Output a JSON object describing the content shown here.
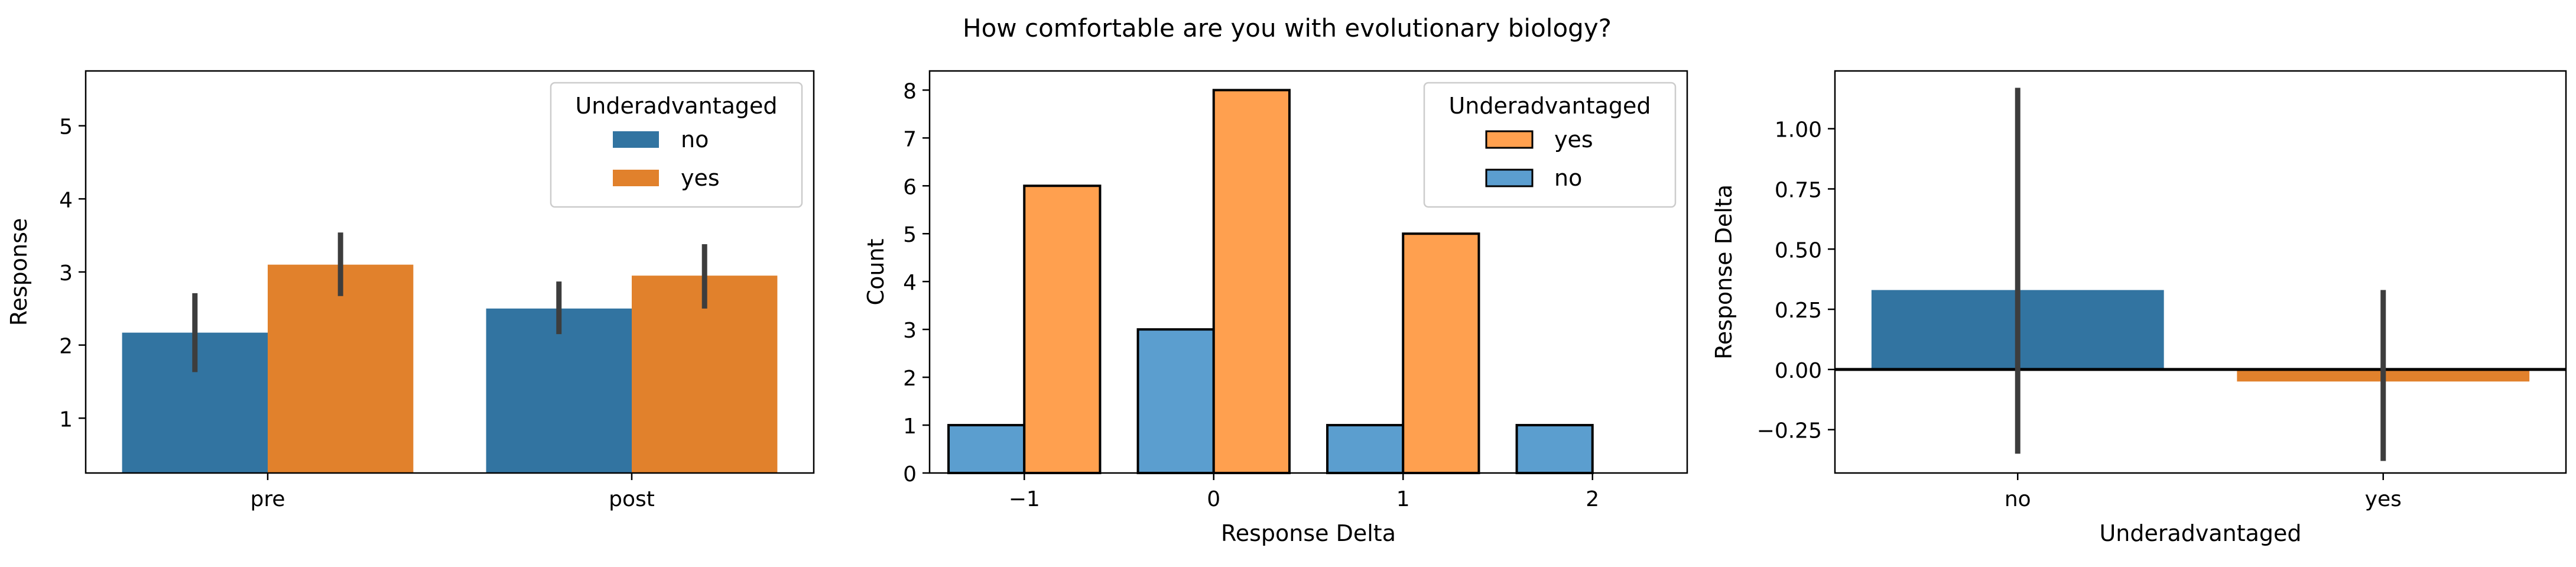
{
  "figure": {
    "title": "How comfortable are you with evolutionary biology?"
  },
  "colors": {
    "blue": "#3274a1",
    "orange": "#e1812c",
    "hist_blue": "#5b9ecf",
    "hist_orange": "#ffa04f",
    "errorbar": "#3d3d3d"
  },
  "chart_data": [
    {
      "type": "bar",
      "title": "",
      "xlabel": "",
      "ylabel": "Response",
      "categories": [
        "pre",
        "post"
      ],
      "ylim": [
        0.25,
        5.75
      ],
      "yticks": [
        1,
        2,
        3,
        4,
        5
      ],
      "legend": {
        "title": "Underadvantaged",
        "placement": "top-right"
      },
      "series": [
        {
          "name": "no",
          "color": "blue",
          "values": [
            2.17,
            2.5
          ],
          "ci": [
            [
              1.63,
              2.71
            ],
            [
              2.15,
              2.87
            ]
          ]
        },
        {
          "name": "yes",
          "color": "orange",
          "values": [
            3.1,
            2.95
          ],
          "ci": [
            [
              2.67,
              3.54
            ],
            [
              2.5,
              3.38
            ]
          ]
        }
      ]
    },
    {
      "type": "bar",
      "subtype": "histogram",
      "title": "",
      "xlabel": "Response Delta",
      "ylabel": "Count",
      "categories": [
        -1,
        0,
        1,
        2
      ],
      "xlim": [
        -1.5,
        2.5
      ],
      "ylim": [
        0,
        8.4
      ],
      "xticks": [
        -1,
        0,
        1,
        2
      ],
      "xtick_labels": [
        "−1",
        "0",
        "1",
        "2"
      ],
      "yticks": [
        0,
        1,
        2,
        3,
        4,
        5,
        6,
        7,
        8
      ],
      "legend": {
        "title": "Underadvantaged",
        "placement": "top-right"
      },
      "series": [
        {
          "name": "no",
          "color": "hist_blue",
          "values": [
            1,
            3,
            1,
            1
          ]
        },
        {
          "name": "yes",
          "color": "hist_orange",
          "values": [
            6,
            8,
            5,
            0
          ]
        }
      ],
      "legend_order": [
        "yes",
        "no"
      ]
    },
    {
      "type": "bar",
      "title": "",
      "xlabel": "Underadvantaged",
      "ylabel": "Response Delta",
      "categories": [
        "no",
        "yes"
      ],
      "ylim": [
        -0.43,
        1.24
      ],
      "yticks": [
        -0.25,
        0.0,
        0.25,
        0.5,
        0.75,
        1.0
      ],
      "ytick_labels": [
        "−0.25",
        "0.00",
        "0.25",
        "0.50",
        "0.75",
        "1.00"
      ],
      "reference_line_y": 0,
      "series": [
        {
          "name": "",
          "colors": [
            "blue",
            "orange"
          ],
          "values": [
            0.33,
            -0.05
          ],
          "ci": [
            [
              -0.35,
              1.17
            ],
            [
              -0.38,
              0.33
            ]
          ]
        }
      ]
    }
  ]
}
